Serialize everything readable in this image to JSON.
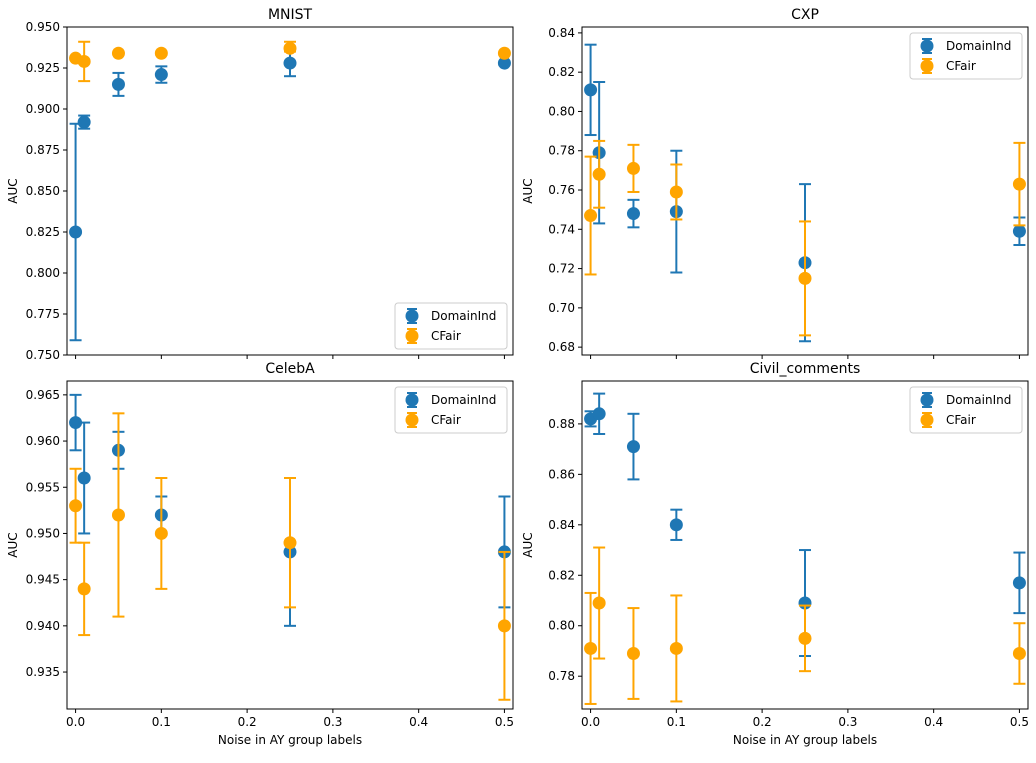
{
  "colors": {
    "DomainInd": "#1f77b4",
    "CFair": "#ffa500"
  },
  "chart_data": [
    {
      "type": "scatter",
      "title": "MNIST",
      "xlabel": "",
      "ylabel": "AUC",
      "xlim": [
        -0.01,
        0.51
      ],
      "ylim": [
        0.75,
        0.95
      ],
      "yticks": [
        0.75,
        0.775,
        0.8,
        0.825,
        0.85,
        0.875,
        0.9,
        0.925,
        0.95
      ],
      "ytick_labels": [
        "0.750",
        "0.775",
        "0.800",
        "0.825",
        "0.850",
        "0.875",
        "0.900",
        "0.925",
        "0.950"
      ],
      "xticks": [
        0,
        0.1,
        0.2,
        0.3,
        0.4,
        0.5
      ],
      "xtick_labels": [],
      "legend_loc": "lower-right",
      "series": [
        {
          "name": "DomainInd",
          "x": [
            0,
            0.01,
            0.05,
            0.1,
            0.25,
            0.5
          ],
          "y": [
            0.825,
            0.892,
            0.915,
            0.921,
            0.928,
            0.928
          ],
          "err_low": [
            0.759,
            0.888,
            0.908,
            0.916,
            0.92,
            0.927
          ],
          "err_high": [
            0.891,
            0.896,
            0.922,
            0.926,
            0.936,
            0.929
          ]
        },
        {
          "name": "CFair",
          "x": [
            0,
            0.01,
            0.05,
            0.1,
            0.25,
            0.5
          ],
          "y": [
            0.931,
            0.929,
            0.934,
            0.934,
            0.937,
            0.934
          ],
          "err_low": [
            0.93,
            0.917,
            0.933,
            0.933,
            0.935,
            0.933
          ],
          "err_high": [
            0.932,
            0.941,
            0.935,
            0.935,
            0.941,
            0.935
          ]
        }
      ]
    },
    {
      "type": "scatter",
      "title": "CXP",
      "xlabel": "",
      "ylabel": "AUC",
      "xlim": [
        -0.01,
        0.51
      ],
      "ylim": [
        0.676,
        0.843
      ],
      "yticks": [
        0.68,
        0.7,
        0.72,
        0.74,
        0.76,
        0.78,
        0.8,
        0.82,
        0.84
      ],
      "ytick_labels": [
        "0.68",
        "0.70",
        "0.72",
        "0.74",
        "0.76",
        "0.78",
        "0.80",
        "0.82",
        "0.84"
      ],
      "xticks": [
        0,
        0.1,
        0.2,
        0.3,
        0.4,
        0.5
      ],
      "xtick_labels": [],
      "legend_loc": "top-right",
      "series": [
        {
          "name": "DomainInd",
          "x": [
            0,
            0.01,
            0.05,
            0.1,
            0.25,
            0.5
          ],
          "y": [
            0.811,
            0.779,
            0.748,
            0.749,
            0.723,
            0.739
          ],
          "err_low": [
            0.788,
            0.743,
            0.741,
            0.718,
            0.683,
            0.732
          ],
          "err_high": [
            0.834,
            0.815,
            0.755,
            0.78,
            0.763,
            0.746
          ]
        },
        {
          "name": "CFair",
          "x": [
            0,
            0.01,
            0.05,
            0.1,
            0.25,
            0.5
          ],
          "y": [
            0.747,
            0.768,
            0.771,
            0.759,
            0.715,
            0.763
          ],
          "err_low": [
            0.717,
            0.751,
            0.759,
            0.745,
            0.686,
            0.742
          ],
          "err_high": [
            0.777,
            0.785,
            0.783,
            0.773,
            0.744,
            0.784
          ]
        }
      ]
    },
    {
      "type": "scatter",
      "title": "CelebA",
      "xlabel": "Noise in AY group labels",
      "ylabel": "AUC",
      "xlim": [
        -0.01,
        0.51
      ],
      "ylim": [
        0.931,
        0.9665
      ],
      "yticks": [
        0.935,
        0.94,
        0.945,
        0.95,
        0.955,
        0.96,
        0.965
      ],
      "ytick_labels": [
        "0.935",
        "0.940",
        "0.945",
        "0.950",
        "0.955",
        "0.960",
        "0.965"
      ],
      "xticks": [
        0,
        0.1,
        0.2,
        0.3,
        0.4,
        0.5
      ],
      "xtick_labels": [
        "0.0",
        "0.1",
        "0.2",
        "0.3",
        "0.4",
        "0.5"
      ],
      "legend_loc": "top-right",
      "series": [
        {
          "name": "DomainInd",
          "x": [
            0,
            0.01,
            0.05,
            0.1,
            0.25,
            0.5
          ],
          "y": [
            0.962,
            0.956,
            0.959,
            0.952,
            0.948,
            0.948
          ],
          "err_low": [
            0.959,
            0.95,
            0.957,
            0.95,
            0.94,
            0.942
          ],
          "err_high": [
            0.965,
            0.962,
            0.961,
            0.954,
            0.956,
            0.954
          ]
        },
        {
          "name": "CFair",
          "x": [
            0,
            0.01,
            0.05,
            0.1,
            0.25,
            0.5
          ],
          "y": [
            0.953,
            0.944,
            0.952,
            0.95,
            0.949,
            0.94
          ],
          "err_low": [
            0.949,
            0.939,
            0.941,
            0.944,
            0.942,
            0.932
          ],
          "err_high": [
            0.957,
            0.949,
            0.963,
            0.956,
            0.956,
            0.948
          ]
        }
      ]
    },
    {
      "type": "scatter",
      "title": "Civil_comments",
      "xlabel": "Noise in AY group labels",
      "ylabel": "AUC",
      "xlim": [
        -0.01,
        0.51
      ],
      "ylim": [
        0.767,
        0.897
      ],
      "yticks": [
        0.78,
        0.8,
        0.82,
        0.84,
        0.86,
        0.88
      ],
      "ytick_labels": [
        "0.78",
        "0.80",
        "0.82",
        "0.84",
        "0.86",
        "0.88"
      ],
      "xticks": [
        0,
        0.1,
        0.2,
        0.3,
        0.4,
        0.5
      ],
      "xtick_labels": [
        "0.0",
        "0.1",
        "0.2",
        "0.3",
        "0.4",
        "0.5"
      ],
      "legend_loc": "top-right",
      "series": [
        {
          "name": "DomainInd",
          "x": [
            0,
            0.01,
            0.05,
            0.1,
            0.25,
            0.5
          ],
          "y": [
            0.882,
            0.884,
            0.871,
            0.84,
            0.809,
            0.817
          ],
          "err_low": [
            0.879,
            0.876,
            0.858,
            0.834,
            0.788,
            0.805
          ],
          "err_high": [
            0.885,
            0.892,
            0.884,
            0.846,
            0.83,
            0.829
          ]
        },
        {
          "name": "CFair",
          "x": [
            0,
            0.01,
            0.05,
            0.1,
            0.25,
            0.5
          ],
          "y": [
            0.791,
            0.809,
            0.789,
            0.791,
            0.795,
            0.789
          ],
          "err_low": [
            0.769,
            0.787,
            0.771,
            0.77,
            0.782,
            0.777
          ],
          "err_high": [
            0.813,
            0.831,
            0.807,
            0.812,
            0.808,
            0.801
          ]
        }
      ]
    }
  ]
}
